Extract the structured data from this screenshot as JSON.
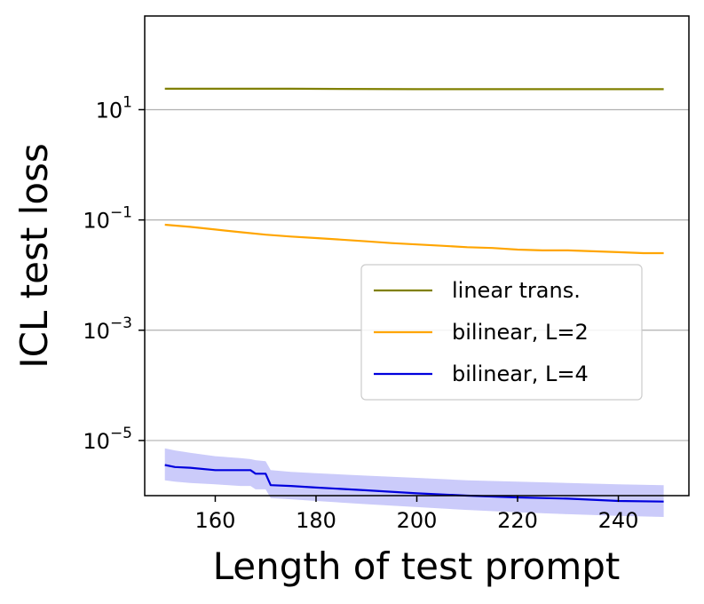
{
  "chart_data": {
    "type": "line",
    "title": "",
    "xlabel": "Length of test prompt",
    "ylabel": "ICL test loss",
    "xlim": [
      146,
      254
    ],
    "ylim": [
      1e-06,
      500
    ],
    "yscale": "log",
    "x_ticks": [
      160,
      180,
      200,
      220,
      240
    ],
    "y_ticks": [
      {
        "base": "10",
        "exp": "1",
        "value": 10
      },
      {
        "base": "10",
        "exp": "−1",
        "value": 0.1
      },
      {
        "base": "10",
        "exp": "−3",
        "value": 0.001
      },
      {
        "base": "10",
        "exp": "−5",
        "value": 1e-05
      }
    ],
    "grid": "horizontal",
    "legend_position": "center-right",
    "series": [
      {
        "name": "linear trans.",
        "color": "#808000",
        "x": [
          150,
          175,
          200,
          225,
          249
        ],
        "y": [
          24,
          24,
          23.5,
          23.5,
          23.5
        ]
      },
      {
        "name": "bilinear, L=2",
        "color": "#FFA500",
        "x": [
          150,
          155,
          160,
          165,
          170,
          175,
          180,
          185,
          190,
          195,
          200,
          205,
          210,
          215,
          220,
          225,
          230,
          235,
          240,
          245,
          249
        ],
        "y": [
          0.082,
          0.075,
          0.067,
          0.06,
          0.054,
          0.05,
          0.047,
          0.044,
          0.041,
          0.038,
          0.036,
          0.034,
          0.032,
          0.031,
          0.029,
          0.028,
          0.028,
          0.027,
          0.026,
          0.025,
          0.025
        ]
      },
      {
        "name": "bilinear, L=4",
        "color": "#0000DD",
        "band_color": "#8C8CF5",
        "x": [
          150,
          152,
          155,
          160,
          165,
          167,
          168,
          170,
          171,
          175,
          180,
          190,
          200,
          210,
          220,
          230,
          240,
          249
        ],
        "y": [
          3.6e-06,
          3.3e-06,
          3.2e-06,
          2.9e-06,
          2.9e-06,
          2.9e-06,
          2.5e-06,
          2.5e-06,
          1.55e-06,
          1.5e-06,
          1.4e-06,
          1.25e-06,
          1.1e-06,
          1e-06,
          9.3e-07,
          8.8e-07,
          8e-07,
          7.8e-07
        ],
        "upper": [
          7.2e-06,
          6.6e-06,
          6e-06,
          5.2e-06,
          4.8e-06,
          4.6e-06,
          4.4e-06,
          4.2e-06,
          2.9e-06,
          2.7e-06,
          2.55e-06,
          2.3e-06,
          2.1e-06,
          1.9e-06,
          1.8e-06,
          1.7e-06,
          1.6e-06,
          1.55e-06
        ],
        "lower": [
          1.9e-06,
          1.8e-06,
          1.7e-06,
          1.6e-06,
          1.5e-06,
          1.5e-06,
          1.3e-06,
          1.3e-06,
          9e-07,
          8.6e-07,
          8e-07,
          7e-07,
          6.2e-07,
          5.5e-07,
          5e-07,
          4.6e-07,
          4.3e-07,
          4.1e-07
        ]
      }
    ]
  }
}
